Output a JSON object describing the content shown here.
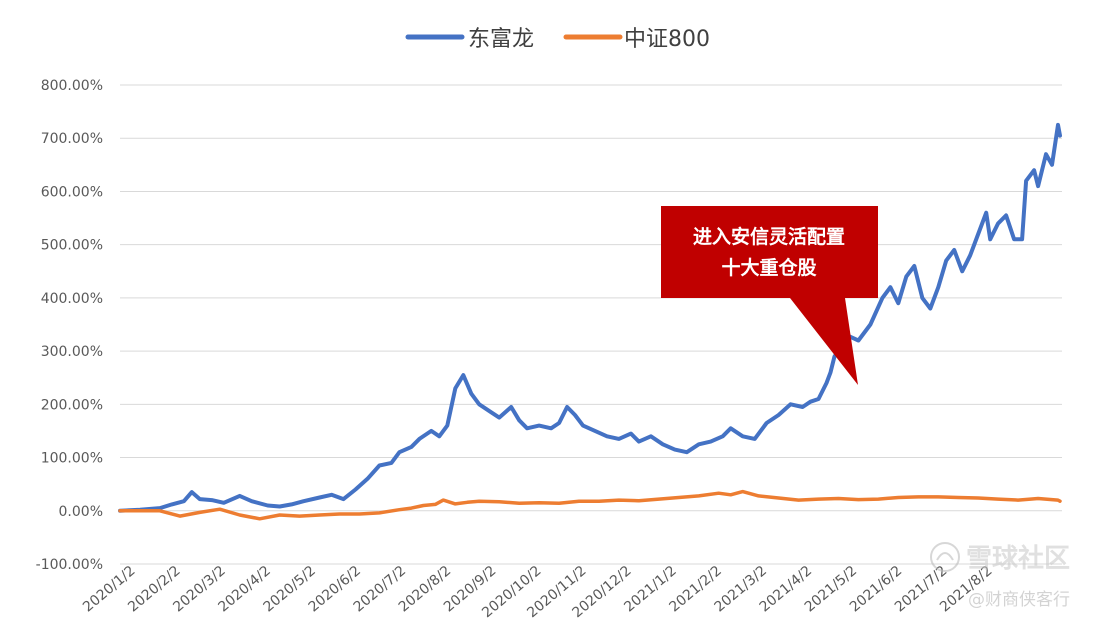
{
  "chart_data": {
    "type": "line",
    "title": "",
    "xlabel": "",
    "ylabel": "",
    "ylim": [
      -100,
      800
    ],
    "yticks": [
      -100,
      0,
      100,
      200,
      300,
      400,
      500,
      600,
      700,
      800
    ],
    "ytick_labels": [
      "-100.00%",
      "0.00%",
      "100.00%",
      "200.00%",
      "300.00%",
      "400.00%",
      "500.00%",
      "600.00%",
      "700.00%",
      "800.00%"
    ],
    "x_categories": [
      "2020/1/2",
      "2020/2/2",
      "2020/3/2",
      "2020/4/2",
      "2020/5/2",
      "2020/6/2",
      "2020/7/2",
      "2020/8/2",
      "2020/9/2",
      "2020/10/2",
      "2020/11/2",
      "2020/12/2",
      "2021/1/2",
      "2021/2/2",
      "2021/3/2",
      "2021/4/2",
      "2021/5/2",
      "2021/6/2",
      "2021/7/2",
      "2021/8/2"
    ],
    "x_range_months": [
      0,
      20.3
    ],
    "grid": true,
    "legend_position": "top-center",
    "series": [
      {
        "name": "东富龙",
        "color": "#4472C4",
        "points": [
          [
            0,
            0
          ],
          [
            0.5,
            2
          ],
          [
            1,
            5
          ],
          [
            1.3,
            12
          ],
          [
            1.6,
            18
          ],
          [
            1.8,
            35
          ],
          [
            2,
            22
          ],
          [
            2.3,
            20
          ],
          [
            2.6,
            15
          ],
          [
            3,
            28
          ],
          [
            3.3,
            18
          ],
          [
            3.7,
            10
          ],
          [
            4,
            8
          ],
          [
            4.3,
            12
          ],
          [
            4.6,
            18
          ],
          [
            5,
            25
          ],
          [
            5.3,
            30
          ],
          [
            5.6,
            22
          ],
          [
            5.9,
            40
          ],
          [
            6.2,
            60
          ],
          [
            6.5,
            85
          ],
          [
            6.8,
            90
          ],
          [
            7,
            110
          ],
          [
            7.3,
            120
          ],
          [
            7.5,
            135
          ],
          [
            7.8,
            150
          ],
          [
            8,
            140
          ],
          [
            8.2,
            160
          ],
          [
            8.4,
            230
          ],
          [
            8.6,
            255
          ],
          [
            8.8,
            220
          ],
          [
            9,
            200
          ],
          [
            9.3,
            185
          ],
          [
            9.5,
            175
          ],
          [
            9.8,
            195
          ],
          [
            10,
            170
          ],
          [
            10.2,
            155
          ],
          [
            10.5,
            160
          ],
          [
            10.8,
            155
          ],
          [
            11,
            165
          ],
          [
            11.2,
            195
          ],
          [
            11.4,
            180
          ],
          [
            11.6,
            160
          ],
          [
            11.9,
            150
          ],
          [
            12.2,
            140
          ],
          [
            12.5,
            135
          ],
          [
            12.8,
            145
          ],
          [
            13,
            130
          ],
          [
            13.3,
            140
          ],
          [
            13.6,
            125
          ],
          [
            13.9,
            115
          ],
          [
            14.2,
            110
          ],
          [
            14.5,
            125
          ],
          [
            14.8,
            130
          ],
          [
            15.1,
            140
          ],
          [
            15.3,
            155
          ],
          [
            15.6,
            140
          ],
          [
            15.9,
            135
          ],
          [
            16.2,
            165
          ],
          [
            16.5,
            180
          ],
          [
            16.8,
            200
          ],
          [
            17.1,
            195
          ],
          [
            17.3,
            205
          ],
          [
            17.5,
            210
          ],
          [
            17.7,
            240
          ],
          [
            17.8,
            260
          ],
          [
            17.9,
            290
          ],
          [
            18,
            300
          ],
          [
            18.2,
            330
          ],
          [
            18.5,
            320
          ],
          [
            18.8,
            350
          ],
          [
            19.1,
            400
          ],
          [
            19.3,
            420
          ],
          [
            19.5,
            390
          ],
          [
            19.7,
            440
          ],
          [
            19.9,
            460
          ],
          [
            20.1,
            400
          ],
          [
            20.3,
            380
          ],
          [
            20.5,
            420
          ],
          [
            20.7,
            470
          ],
          [
            20.9,
            490
          ],
          [
            21.1,
            450
          ],
          [
            21.3,
            480
          ],
          [
            21.5,
            520
          ],
          [
            21.7,
            560
          ],
          [
            21.8,
            510
          ],
          [
            22,
            540
          ],
          [
            22.2,
            555
          ],
          [
            22.4,
            510
          ],
          [
            22.6,
            510
          ],
          [
            22.7,
            620
          ],
          [
            22.9,
            640
          ],
          [
            23,
            610
          ],
          [
            23.2,
            670
          ],
          [
            23.35,
            650
          ],
          [
            23.5,
            725
          ],
          [
            23.55,
            705
          ]
        ]
      },
      {
        "name": "中证800",
        "color": "#ED7D31",
        "points": [
          [
            0,
            0
          ],
          [
            1,
            0
          ],
          [
            1.5,
            -10
          ],
          [
            2,
            -3
          ],
          [
            2.5,
            3
          ],
          [
            3,
            -8
          ],
          [
            3.5,
            -15
          ],
          [
            4,
            -8
          ],
          [
            4.5,
            -10
          ],
          [
            5,
            -8
          ],
          [
            5.5,
            -6
          ],
          [
            6,
            -6
          ],
          [
            6.5,
            -4
          ],
          [
            7,
            2
          ],
          [
            7.3,
            5
          ],
          [
            7.6,
            10
          ],
          [
            7.9,
            12
          ],
          [
            8.1,
            20
          ],
          [
            8.4,
            13
          ],
          [
            8.7,
            16
          ],
          [
            9,
            18
          ],
          [
            9.5,
            17
          ],
          [
            10,
            14
          ],
          [
            10.5,
            15
          ],
          [
            11,
            14
          ],
          [
            11.5,
            18
          ],
          [
            12,
            18
          ],
          [
            12.5,
            20
          ],
          [
            13,
            19
          ],
          [
            13.5,
            22
          ],
          [
            14,
            25
          ],
          [
            14.5,
            28
          ],
          [
            15,
            33
          ],
          [
            15.3,
            30
          ],
          [
            15.6,
            36
          ],
          [
            16,
            28
          ],
          [
            16.5,
            24
          ],
          [
            17,
            20
          ],
          [
            17.5,
            22
          ],
          [
            18,
            23
          ],
          [
            18.5,
            21
          ],
          [
            19,
            22
          ],
          [
            19.5,
            25
          ],
          [
            20,
            26
          ],
          [
            20.5,
            26
          ],
          [
            21,
            25
          ],
          [
            21.5,
            24
          ],
          [
            22,
            22
          ],
          [
            22.5,
            20
          ],
          [
            23,
            23
          ],
          [
            23.5,
            20
          ],
          [
            23.55,
            18
          ]
        ]
      }
    ],
    "annotation": {
      "text_line1": "进入安信灵活配置",
      "text_line2": "十大重仓股",
      "box_color": "#C00000",
      "text_color": "#ffffff"
    }
  },
  "watermark": {
    "brand": "雪球社区",
    "author": "@财商侠客行"
  }
}
